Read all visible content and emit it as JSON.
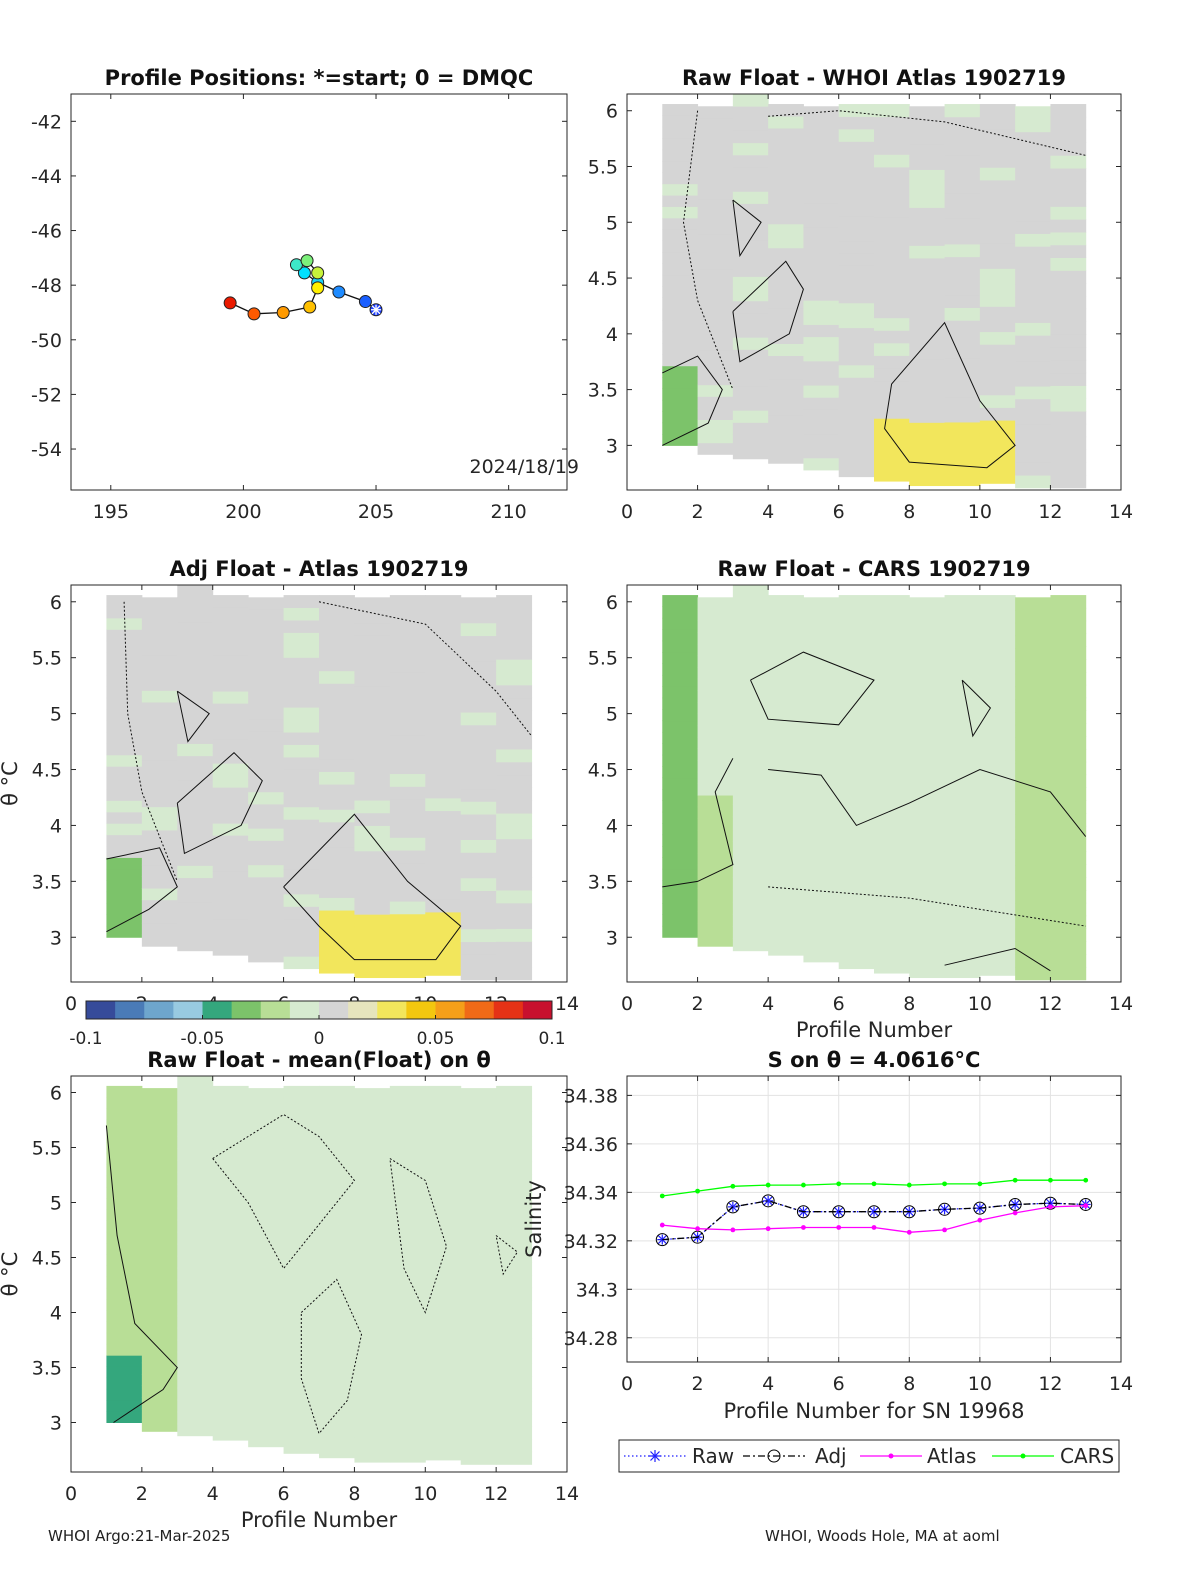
{
  "footer": {
    "left": "WHOI Argo:21-Mar-2025",
    "right": "WHOI, Woods Hole, MA at aoml"
  },
  "colormap": [
    "#364b9a",
    "#4a7bb7",
    "#6ea6cd",
    "#98cae1",
    "#34a77d",
    "#7cc36a",
    "#b8de96",
    "#d6ead0",
    "#d5d5d5",
    "#e6e4bd",
    "#f2e65c",
    "#f3c70f",
    "#f59f19",
    "#f06a17",
    "#e53216",
    "#c8102e"
  ],
  "chart_data": [
    {
      "id": "positions",
      "type": "scatter",
      "title": "Profile Positions: *=start; 0 = DMQC",
      "annotation": "2024/18/19",
      "xlim": [
        193.5,
        212.2
      ],
      "ylim": [
        -55.5,
        -41
      ],
      "xticks": [
        195,
        200,
        205,
        210
      ],
      "yticks": [
        -42,
        -44,
        -46,
        -48,
        -50,
        -52,
        -54
      ],
      "xtick_labels": [
        "195",
        "200",
        "205",
        "210"
      ],
      "ytick_labels": [
        "-42",
        "-44",
        "-46",
        "-48",
        "-50",
        "-52",
        "-54"
      ],
      "points": [
        {
          "x": 205.0,
          "y": -48.9,
          "color": "#1d3fff"
        },
        {
          "x": 204.6,
          "y": -48.6,
          "color": "#1a5fff"
        },
        {
          "x": 203.6,
          "y": -48.25,
          "color": "#1e8bff"
        },
        {
          "x": 202.8,
          "y": -47.9,
          "color": "#1ad1f5"
        },
        {
          "x": 202.3,
          "y": -47.55,
          "color": "#00e0ff"
        },
        {
          "x": 202.0,
          "y": -47.25,
          "color": "#3de8c8"
        },
        {
          "x": 202.4,
          "y": -47.1,
          "color": "#7cf07a"
        },
        {
          "x": 202.8,
          "y": -47.55,
          "color": "#c7f23a"
        },
        {
          "x": 202.8,
          "y": -48.1,
          "color": "#fff000"
        },
        {
          "x": 202.5,
          "y": -48.8,
          "color": "#ffc000"
        },
        {
          "x": 201.5,
          "y": -49.0,
          "color": "#ff9a00"
        },
        {
          "x": 200.4,
          "y": -49.05,
          "color": "#ff5a00"
        },
        {
          "x": 199.5,
          "y": -48.65,
          "color": "#ea1a00"
        }
      ]
    },
    {
      "id": "raw-atlas",
      "type": "heatmap",
      "title": "Raw Float - WHOI Atlas  1902719",
      "xlim": [
        0,
        14
      ],
      "ylim": [
        2.6,
        6.15
      ],
      "xticks": [
        0,
        2,
        4,
        6,
        8,
        10,
        12,
        14
      ],
      "yticks": [
        3,
        3.5,
        4,
        4.5,
        5,
        5.5,
        6
      ],
      "xtick_labels": [
        "0",
        "2",
        "4",
        "6",
        "8",
        "10",
        "12",
        "14"
      ],
      "ytick_labels": [
        "3",
        "3.5",
        "4",
        "4.5",
        "5",
        "5.5",
        "6"
      ],
      "bias": 0.004,
      "seed": 11
    },
    {
      "id": "adj-atlas",
      "type": "heatmap",
      "title": "Adj Float - Atlas  1902719",
      "ylabel": "θ °C",
      "xlim": [
        0,
        14
      ],
      "ylim": [
        2.6,
        6.15
      ],
      "xticks": [
        0,
        2,
        4,
        6,
        8,
        10,
        12,
        14
      ],
      "yticks": [
        3,
        3.5,
        4,
        4.5,
        5,
        5.5,
        6
      ],
      "xtick_labels": [
        "0",
        "2",
        "4",
        "6",
        "8",
        "10",
        "12",
        "14"
      ],
      "ytick_labels": [
        "3",
        "3.5",
        "4",
        "4.5",
        "5",
        "5.5",
        "6"
      ],
      "bias": 0.004,
      "seed": 23
    },
    {
      "id": "raw-cars",
      "type": "heatmap",
      "title": "Raw Float - CARS  1902719",
      "xlabel": "Profile Number",
      "xlim": [
        0,
        14
      ],
      "ylim": [
        2.6,
        6.15
      ],
      "xticks": [
        0,
        2,
        4,
        6,
        8,
        10,
        12,
        14
      ],
      "yticks": [
        3,
        3.5,
        4,
        4.5,
        5,
        5.5,
        6
      ],
      "xtick_labels": [
        "0",
        "2",
        "4",
        "6",
        "8",
        "10",
        "12",
        "14"
      ],
      "ytick_labels": [
        "3",
        "3.5",
        "4",
        "4.5",
        "5",
        "5.5",
        "6"
      ],
      "bias": -0.006,
      "seed": 37
    },
    {
      "id": "raw-mean",
      "type": "heatmap",
      "title": "Raw Float - mean(Float) on θ",
      "xlabel": "Profile Number",
      "ylabel": "θ °C",
      "xlim": [
        0,
        14
      ],
      "ylim": [
        2.55,
        6.15
      ],
      "xticks": [
        0,
        2,
        4,
        6,
        8,
        10,
        12,
        14
      ],
      "yticks": [
        3,
        3.5,
        4,
        4.5,
        5,
        5.5,
        6
      ],
      "xtick_labels": [
        "0",
        "2",
        "4",
        "6",
        "8",
        "10",
        "12",
        "14"
      ],
      "ytick_labels": [
        "3",
        "3.5",
        "4",
        "4.5",
        "5",
        "5.5",
        "6"
      ],
      "bias": 0.0,
      "seed": 51
    },
    {
      "id": "colorbar",
      "type": "colorbar",
      "range": [
        -0.1,
        0.1
      ],
      "ticks": [
        -0.1,
        -0.05,
        0,
        0.05,
        0.1
      ],
      "tick_labels": [
        "-0.1",
        "-0.05",
        "0",
        "0.05",
        "0.1"
      ]
    },
    {
      "id": "salinity",
      "type": "line",
      "title": "S on θ = 4.0616°C",
      "xlabel": "Profile Number for SN 19968",
      "ylabel": "Salinity",
      "xlim": [
        0,
        14
      ],
      "ylim": [
        34.27,
        34.388
      ],
      "xticks": [
        0,
        2,
        4,
        6,
        8,
        10,
        12,
        14
      ],
      "yticks": [
        34.28,
        34.3,
        34.32,
        34.34,
        34.36,
        34.38
      ],
      "xtick_labels": [
        "0",
        "2",
        "4",
        "6",
        "8",
        "10",
        "12",
        "14"
      ],
      "ytick_labels": [
        "34.28",
        "34.3",
        "34.32",
        "34.34",
        "34.36",
        "34.38"
      ],
      "grid": true,
      "x": [
        1,
        2,
        3,
        4,
        5,
        6,
        7,
        8,
        9,
        10,
        11,
        12,
        13
      ],
      "series": [
        {
          "name": "Raw",
          "color": "#1f1fff",
          "values": [
            34.3205,
            34.3215,
            34.334,
            34.3365,
            34.332,
            34.332,
            34.332,
            34.332,
            34.333,
            34.3335,
            34.335,
            34.3355,
            34.335
          ]
        },
        {
          "name": "Adj",
          "color": "#000000",
          "values": [
            34.3205,
            34.3215,
            34.334,
            34.3365,
            34.332,
            34.332,
            34.332,
            34.332,
            34.333,
            34.3335,
            34.335,
            34.3355,
            34.335
          ]
        },
        {
          "name": "Atlas",
          "color": "#ff00ff",
          "values": [
            34.3265,
            34.325,
            34.3245,
            34.325,
            34.3255,
            34.3255,
            34.3255,
            34.3235,
            34.3245,
            34.3285,
            34.3315,
            34.334,
            34.3345
          ]
        },
        {
          "name": "CARS",
          "color": "#00ff00",
          "values": [
            34.3385,
            34.3405,
            34.3425,
            34.343,
            34.343,
            34.3435,
            34.3435,
            34.343,
            34.3435,
            34.3435,
            34.345,
            34.345,
            34.345
          ]
        }
      ]
    }
  ]
}
